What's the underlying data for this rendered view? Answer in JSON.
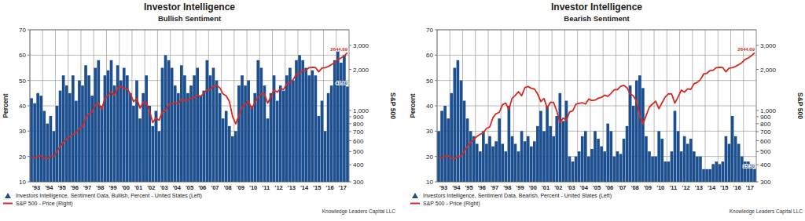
{
  "chart_data": [
    {
      "type": "bar",
      "title": "Investor Intelligence",
      "subtitle": "Bullish Sentiment",
      "y_label": "Percent",
      "y2_label": "S&P 500",
      "source": "Knowledge Leaders Capital LLC",
      "annotations": [
        "47.60",
        "2644.69"
      ],
      "categories": [
        "'93",
        null,
        null,
        null,
        "'94",
        null,
        null,
        null,
        "'95",
        null,
        null,
        null,
        "'96",
        null,
        null,
        null,
        "'97",
        null,
        null,
        null,
        "'98",
        null,
        null,
        null,
        "'99",
        null,
        null,
        null,
        "'00",
        null,
        null,
        null,
        "'01",
        null,
        null,
        null,
        "'02",
        null,
        null,
        null,
        "'03",
        null,
        null,
        null,
        "'04",
        null,
        null,
        null,
        "'05",
        null,
        null,
        null,
        "'06",
        null,
        null,
        null,
        "'07",
        null,
        null,
        null,
        "'08",
        null,
        null,
        null,
        "'09",
        null,
        null,
        null,
        "'10",
        null,
        null,
        null,
        "'11",
        null,
        null,
        null,
        "'12",
        null,
        null,
        null,
        "'13",
        null,
        null,
        null,
        "'14",
        null,
        null,
        null,
        "'15",
        null,
        null,
        null,
        "'16",
        null,
        null,
        null,
        "'17",
        null,
        null,
        null
      ],
      "series": [
        {
          "name": "Investors Intelligence, Sentiment Data, Bullish, Percent - United States (Left)",
          "type": "bar",
          "color": "#1c4f8f",
          "values": [
            43,
            41,
            45,
            44,
            38,
            33,
            36,
            30,
            40,
            46,
            52,
            48,
            45,
            52,
            42,
            50,
            48,
            56,
            52,
            44,
            55,
            58,
            40,
            52,
            54,
            58,
            48,
            56,
            50,
            55,
            52,
            45,
            40,
            50,
            35,
            45,
            52,
            40,
            32,
            38,
            30,
            55,
            60,
            58,
            55,
            48,
            45,
            56,
            52,
            45,
            48,
            52,
            55,
            44,
            46,
            58,
            52,
            55,
            50,
            45,
            35,
            38,
            32,
            28,
            30,
            48,
            52,
            48,
            50,
            40,
            45,
            58,
            55,
            48,
            35,
            45,
            52,
            42,
            48,
            46,
            52,
            55,
            50,
            58,
            60,
            58,
            55,
            52,
            54,
            52,
            36,
            42,
            30,
            45,
            48,
            58,
            62,
            57,
            60,
            47.6
          ]
        },
        {
          "name": "S&P 500 - Price (Right)",
          "type": "line",
          "axis": "y2",
          "color": "#d42a22",
          "values": [
            450,
            450,
            460,
            466,
            445,
            444,
            462,
            459,
            500,
            545,
            584,
            615,
            645,
            670,
            687,
            740,
            757,
            885,
            947,
            970,
            1101,
            1133,
            1017,
            1229,
            1286,
            1372,
            1282,
            1469,
            1498,
            1454,
            1436,
            1320,
            1160,
            1224,
            1040,
            1148,
            1147,
            989,
            815,
            880,
            848,
            975,
            995,
            1112,
            1126,
            1140,
            1114,
            1212,
            1180,
            1191,
            1228,
            1248,
            1294,
            1270,
            1335,
            1418,
            1420,
            1503,
            1526,
            1468,
            1322,
            1280,
            1166,
            903,
            797,
            919,
            1057,
            1115,
            1169,
            1030,
            1141,
            1257,
            1325,
            1320,
            1131,
            1257,
            1408,
            1362,
            1440,
            1426,
            1569,
            1606,
            1681,
            1848,
            1872,
            1960,
            1972,
            2059,
            2067,
            2063,
            1920,
            2044,
            2060,
            2099,
            2168,
            2239,
            2363,
            2423,
            2519,
            2644.69
          ]
        }
      ],
      "ylim": [
        10,
        70
      ],
      "yticks": [
        10,
        20,
        30,
        40,
        50,
        60,
        70
      ],
      "y2lim": [
        300,
        3900
      ],
      "y2ticks": [
        300,
        400,
        500,
        600,
        700,
        800,
        900,
        {
          "value": 1000,
          "label": "1,000"
        },
        {
          "value": 2000,
          "label": "2,000"
        },
        {
          "value": 3000,
          "label": "3,000"
        }
      ],
      "log": "y2",
      "grid": true,
      "legend": "bottom"
    },
    {
      "type": "bar",
      "title": "Investor Intelligence",
      "subtitle": "Bearish Sentiment",
      "y_label": "Percent",
      "y2_label": "S&P 500",
      "source": "Knowledge Leaders Capital LLC",
      "annotations": [
        "15.10",
        "2644.69"
      ],
      "categories": [
        "'93",
        null,
        null,
        null,
        "'94",
        null,
        null,
        null,
        "'95",
        null,
        null,
        null,
        "'96",
        null,
        null,
        null,
        "'97",
        null,
        null,
        null,
        "'98",
        null,
        null,
        null,
        "'99",
        null,
        null,
        null,
        "'00",
        null,
        null,
        null,
        "'01",
        null,
        null,
        null,
        "'02",
        null,
        null,
        null,
        "'03",
        null,
        null,
        null,
        "'04",
        null,
        null,
        null,
        "'05",
        null,
        null,
        null,
        "'06",
        null,
        null,
        null,
        "'07",
        null,
        null,
        null,
        "'08",
        null,
        null,
        null,
        "'09",
        null,
        null,
        null,
        "'10",
        null,
        null,
        null,
        "'11",
        null,
        null,
        null,
        "'12",
        null,
        null,
        null,
        "'13",
        null,
        null,
        null,
        "'14",
        null,
        null,
        null,
        "'15",
        null,
        null,
        null,
        "'16",
        null,
        null,
        null,
        "'17",
        null,
        null,
        null
      ],
      "series": [
        {
          "name": "Investors Intelligence, Sentiment Data, Bearish, Percent - United States (Left)",
          "type": "bar",
          "color": "#1c4f8f",
          "values": [
            30,
            38,
            40,
            35,
            45,
            55,
            58,
            50,
            42,
            35,
            30,
            28,
            25,
            22,
            30,
            25,
            28,
            24,
            26,
            35,
            25,
            22,
            40,
            28,
            25,
            22,
            30,
            26,
            28,
            24,
            26,
            32,
            38,
            30,
            40,
            32,
            28,
            36,
            45,
            34,
            42,
            20,
            18,
            20,
            22,
            28,
            30,
            20,
            23,
            30,
            27,
            24,
            22,
            33,
            30,
            20,
            22,
            21,
            27,
            32,
            48,
            40,
            50,
            52,
            47,
            28,
            22,
            20,
            20,
            30,
            27,
            18,
            18,
            22,
            38,
            30,
            22,
            28,
            25,
            27,
            22,
            20,
            20,
            15,
            15,
            15,
            17,
            18,
            17,
            18,
            28,
            25,
            36,
            28,
            25,
            20,
            18,
            18,
            17,
            15.1
          ]
        },
        {
          "name": "S&P 500 - Price (Right)",
          "type": "line",
          "axis": "y2",
          "color": "#d42a22",
          "values": [
            450,
            450,
            460,
            466,
            445,
            444,
            462,
            459,
            500,
            545,
            584,
            615,
            645,
            670,
            687,
            740,
            757,
            885,
            947,
            970,
            1101,
            1133,
            1017,
            1229,
            1286,
            1372,
            1282,
            1469,
            1498,
            1454,
            1436,
            1320,
            1160,
            1224,
            1040,
            1148,
            1147,
            989,
            815,
            880,
            848,
            975,
            995,
            1112,
            1126,
            1140,
            1114,
            1212,
            1180,
            1191,
            1228,
            1248,
            1294,
            1270,
            1335,
            1418,
            1420,
            1503,
            1526,
            1468,
            1322,
            1280,
            1166,
            903,
            797,
            919,
            1057,
            1115,
            1169,
            1030,
            1141,
            1257,
            1325,
            1320,
            1131,
            1257,
            1408,
            1362,
            1440,
            1426,
            1569,
            1606,
            1681,
            1848,
            1872,
            1960,
            1972,
            2059,
            2067,
            2063,
            1920,
            2044,
            2060,
            2099,
            2168,
            2239,
            2363,
            2423,
            2519,
            2644.69
          ]
        }
      ],
      "ylim": [
        10,
        70
      ],
      "yticks": [
        10,
        20,
        30,
        40,
        50,
        60,
        70
      ],
      "y2lim": [
        300,
        3900
      ],
      "y2ticks": [
        300,
        400,
        500,
        600,
        700,
        800,
        900,
        {
          "value": 1000,
          "label": "1,000"
        },
        {
          "value": 2000,
          "label": "2,000"
        },
        {
          "value": 3000,
          "label": "3,000"
        }
      ],
      "log": "y2",
      "grid": true,
      "legend": "bottom"
    }
  ]
}
